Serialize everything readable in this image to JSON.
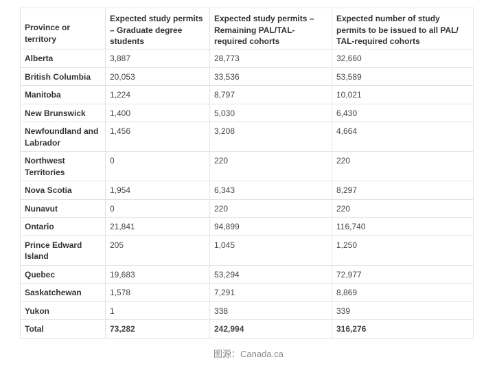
{
  "table": {
    "headers": [
      "Province or territory",
      "Expected study permits – Graduate degree students",
      "Expected study permits – Remaining PAL/TAL-required cohorts",
      "Expected number of study permits to be issued to all PAL/ TAL-required cohorts"
    ],
    "rows": [
      {
        "province": "Alberta",
        "graduate": "3,887",
        "remaining": "28,773",
        "total": "32,660"
      },
      {
        "province": "British Columbia",
        "graduate": "20,053",
        "remaining": "33,536",
        "total": "53,589"
      },
      {
        "province": "Manitoba",
        "graduate": "1,224",
        "remaining": "8,797",
        "total": "10,021"
      },
      {
        "province": "New Brunswick",
        "graduate": "1,400",
        "remaining": "5,030",
        "total": "6,430"
      },
      {
        "province": "Newfoundland and Labrador",
        "graduate": "1,456",
        "remaining": "3,208",
        "total": "4,664"
      },
      {
        "province": "Northwest Territories",
        "graduate": "0",
        "remaining": "220",
        "total": "220"
      },
      {
        "province": "Nova Scotia",
        "graduate": "1,954",
        "remaining": "6,343",
        "total": "8,297"
      },
      {
        "province": "Nunavut",
        "graduate": "0",
        "remaining": "220",
        "total": "220"
      },
      {
        "province": "Ontario",
        "graduate": "21,841",
        "remaining": "94,899",
        "total": "116,740"
      },
      {
        "province": "Prince Edward Island",
        "graduate": "205",
        "remaining": "1,045",
        "total": "1,250"
      },
      {
        "province": "Quebec",
        "graduate": "19,683",
        "remaining": "53,294",
        "total": "72,977"
      },
      {
        "province": "Saskatchewan",
        "graduate": "1,578",
        "remaining": "7,291",
        "total": "8,869"
      },
      {
        "province": "Yukon",
        "graduate": "1",
        "remaining": "338",
        "total": "339"
      },
      {
        "province": "Total",
        "graduate": "73,282",
        "remaining": "242,994",
        "total": "316,276"
      }
    ]
  },
  "caption": "图源：Canada.ca",
  "colors": {
    "border": "#e3e3e3",
    "text": "#333333",
    "caption": "#8a8a8a"
  }
}
